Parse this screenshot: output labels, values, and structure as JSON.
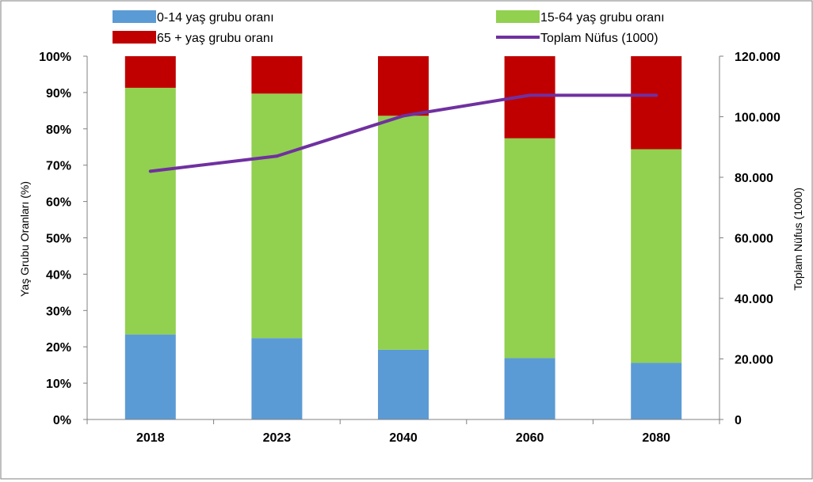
{
  "chart_data": {
    "type": "bar",
    "stacked": true,
    "categories": [
      "2018",
      "2023",
      "2040",
      "2060",
      "2080"
    ],
    "series": [
      {
        "name": "0-14 yaş grubu oranı",
        "color": "#5b9bd5",
        "values": [
          23.4,
          22.4,
          19.2,
          16.9,
          15.6
        ]
      },
      {
        "name": "15-64 yaş grubu oranı",
        "color": "#92d050",
        "values": [
          67.9,
          67.3,
          64.4,
          60.5,
          58.8
        ]
      },
      {
        "name": "65 + yaş grubu oranı",
        "color": "#c00000",
        "values": [
          8.7,
          10.3,
          16.4,
          22.6,
          25.6
        ]
      }
    ],
    "line_series": {
      "name": "Toplam Nüfus (1000)",
      "color": "#7030a0",
      "values": [
        82000,
        87000,
        100300,
        107100,
        107100
      ]
    },
    "ylabel": "Yaş Grubu Oranları (%)",
    "y2label": "Toplam Nüfus (1000)",
    "ylim": [
      0,
      100
    ],
    "y2lim": [
      0,
      120000
    ],
    "yticks": [
      "0%",
      "10%",
      "20%",
      "30%",
      "40%",
      "50%",
      "60%",
      "70%",
      "80%",
      "90%",
      "100%"
    ],
    "y2ticks": [
      "0",
      "20.000",
      "40.000",
      "60.000",
      "80.000",
      "100.000",
      "120.000"
    ],
    "legend_position": "top",
    "grid": false
  }
}
